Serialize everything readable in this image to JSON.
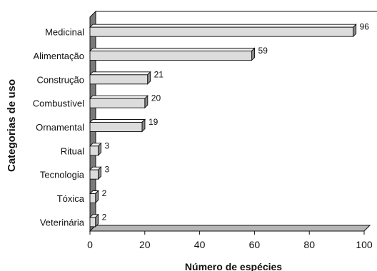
{
  "chart_data": {
    "type": "bar",
    "orientation": "horizontal",
    "title": "",
    "xlabel": "Número de espécies",
    "ylabel": "Categorias de uso",
    "categories": [
      "Medicinal",
      "Alimentação",
      "Construção",
      "Combustível",
      "Ornamental",
      "Ritual",
      "Tecnologia",
      "Tóxica",
      "Veterinária"
    ],
    "values": [
      96,
      59,
      21,
      20,
      19,
      3,
      3,
      2,
      2
    ],
    "data_labels": [
      "96",
      "59",
      "21",
      "20",
      "19",
      "3",
      "3",
      "2",
      "2"
    ],
    "xlim": [
      0,
      100
    ],
    "xticks": [
      0,
      20,
      40,
      60,
      80,
      100
    ],
    "xtick_labels": [
      "0",
      "20",
      "40",
      "60",
      "80",
      "100"
    ],
    "grid": false,
    "legend": "none",
    "style": "3d",
    "colors": {
      "bar_face": "#dcdcdc",
      "bar_top": "#f2f2f2",
      "bar_side": "#8a8a8a",
      "wall": "#7a7a7a",
      "floor": "#b5b5b5",
      "stroke": "#111111"
    }
  }
}
